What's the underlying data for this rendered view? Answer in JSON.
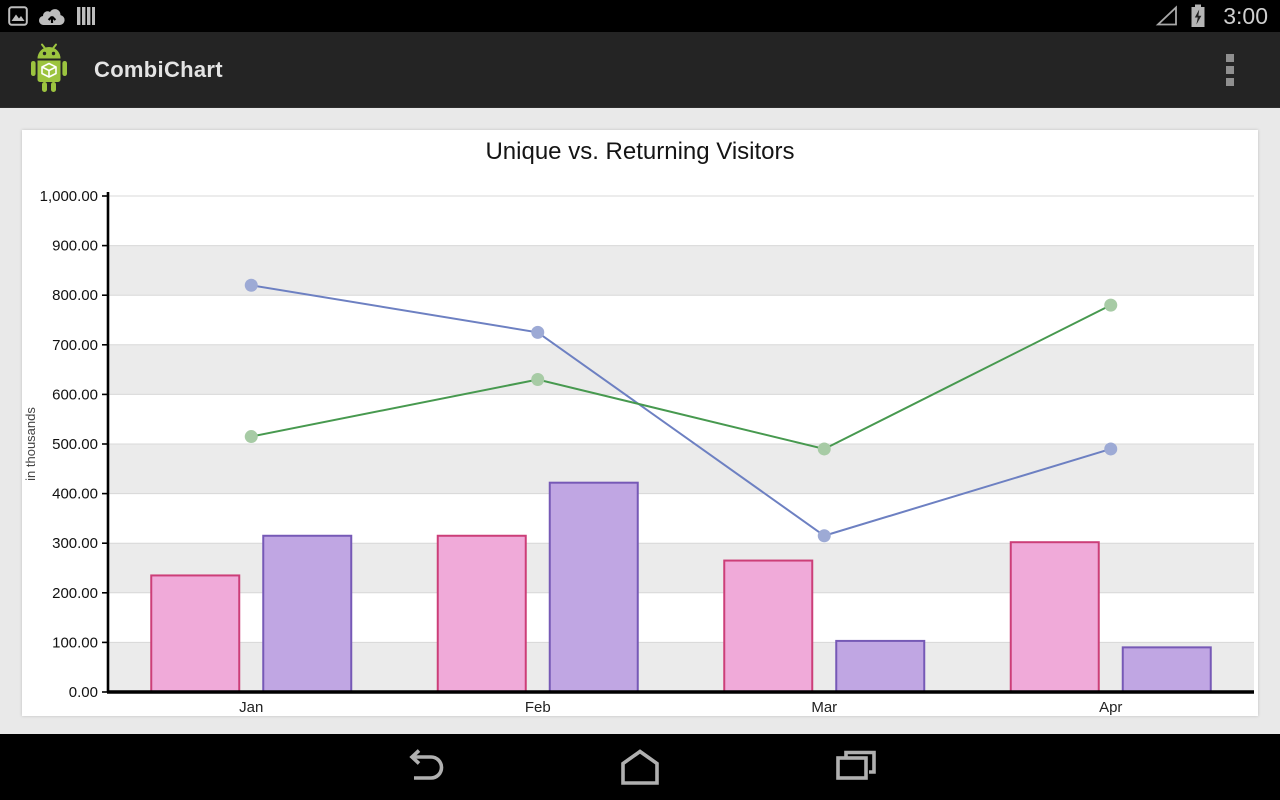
{
  "status_bar": {
    "time": "3:00",
    "left_icons": [
      "gallery-icon",
      "cloud-upload-icon",
      "stack-icon"
    ],
    "right_icons": [
      "signal-triangle-icon",
      "battery-charging-icon"
    ]
  },
  "action_bar": {
    "title": "CombiChart",
    "app_icon": "android-robot-icon",
    "overflow_icon": "overflow-menu-icon"
  },
  "nav_bar": {
    "buttons": [
      "back-icon",
      "home-icon",
      "recents-icon"
    ]
  },
  "chart_data": {
    "type": "bar",
    "subtype": "combo bar + line",
    "title": "Unique vs. Returning Visitors",
    "xlabel": "",
    "ylabel": "in thousands",
    "categories": [
      "Jan",
      "Feb",
      "Mar",
      "Apr"
    ],
    "series": [
      {
        "name": "bar-pink",
        "type": "bar",
        "values": [
          235,
          315,
          265,
          302
        ],
        "fill": "#f0aad9",
        "stroke": "#cc3e78"
      },
      {
        "name": "bar-purple",
        "type": "bar",
        "values": [
          315,
          422,
          103,
          90
        ],
        "fill": "#c0a6e3",
        "stroke": "#7659b6"
      },
      {
        "name": "line-blue",
        "type": "line",
        "values": [
          820,
          725,
          315,
          490
        ],
        "stroke": "#6d80c2",
        "marker": "#9daad5"
      },
      {
        "name": "line-green",
        "type": "line",
        "values": [
          515,
          630,
          490,
          780
        ],
        "stroke": "#47994f",
        "marker": "#a7cba5"
      }
    ],
    "ylim": [
      0,
      1000
    ],
    "ytick_step": 100,
    "ytick_labels": [
      "0.00",
      "100.00",
      "200.00",
      "300.00",
      "400.00",
      "500.00",
      "600.00",
      "700.00",
      "800.00",
      "900.00",
      "1,000.00"
    ],
    "grid": true,
    "plot_bands": {
      "color": "#ebebeb",
      "alternate": true
    },
    "legend": "none"
  }
}
